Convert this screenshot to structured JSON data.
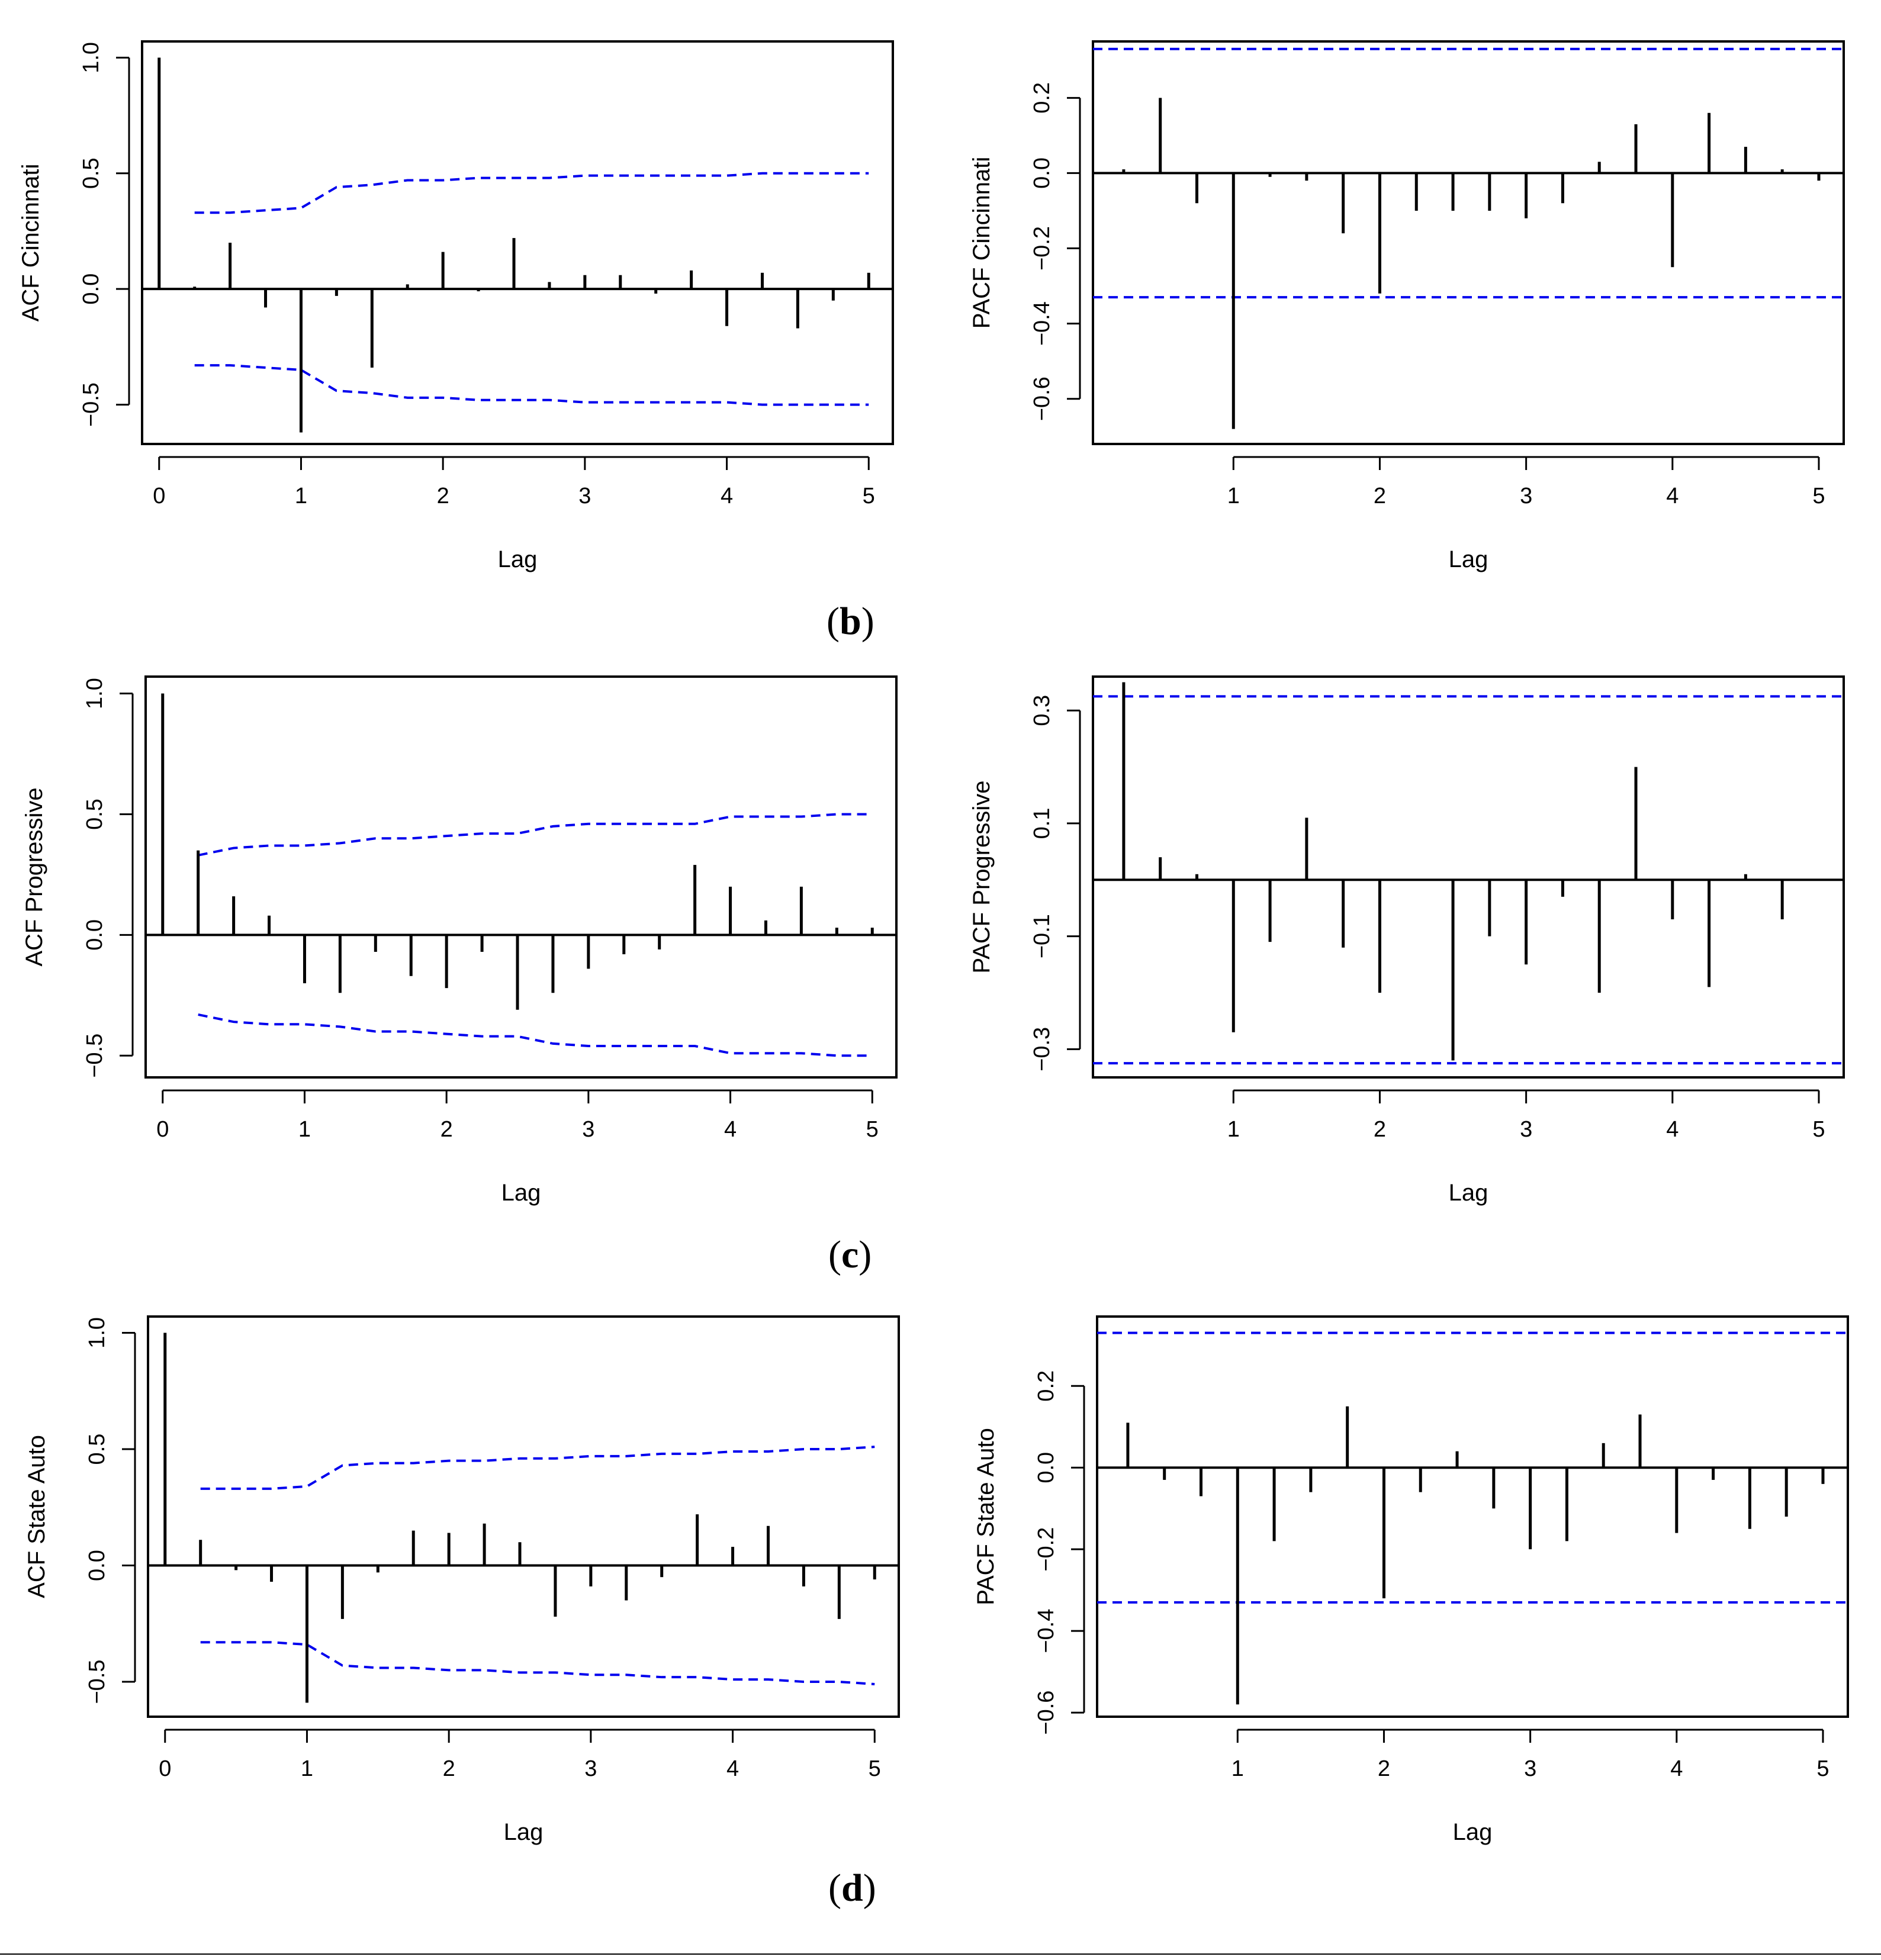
{
  "panel_labels": [
    "b",
    "c",
    "d"
  ],
  "chart_data": [
    {
      "type": "bar",
      "id": "acf_cincinnati",
      "kind": "acf",
      "title": "",
      "xlabel": "Lag",
      "ylabel": "ACF Cincinnati",
      "xlim": [
        -0.12,
        5.17
      ],
      "ylim": [
        -0.67,
        1.07
      ],
      "xticks": [
        0,
        1,
        2,
        3,
        4,
        5
      ],
      "yticks": [
        -0.5,
        0.0,
        0.5,
        1.0
      ],
      "ytick_labels": [
        "−0.5",
        "0.0",
        "0.5",
        "1.0"
      ],
      "lags": [
        0,
        0.25,
        0.5,
        0.75,
        1.0,
        1.25,
        1.5,
        1.75,
        2.0,
        2.25,
        2.5,
        2.75,
        3.0,
        3.25,
        3.5,
        3.75,
        4.0,
        4.25,
        4.5,
        4.75,
        5.0
      ],
      "values": [
        1.0,
        0.01,
        0.2,
        -0.08,
        -0.62,
        -0.03,
        -0.34,
        0.02,
        0.16,
        -0.01,
        0.22,
        0.03,
        0.06,
        0.06,
        -0.02,
        0.08,
        -0.16,
        0.07,
        -0.17,
        -0.05,
        0.07
      ],
      "bound_lags": [
        0.25,
        0.5,
        0.75,
        1.0,
        1.25,
        1.5,
        1.75,
        2.0,
        2.25,
        2.5,
        2.75,
        3.0,
        3.25,
        3.5,
        3.75,
        4.0,
        4.25,
        4.5,
        4.75,
        5.0
      ],
      "bound_values": [
        0.33,
        0.33,
        0.34,
        0.35,
        0.44,
        0.45,
        0.47,
        0.47,
        0.48,
        0.48,
        0.48,
        0.49,
        0.49,
        0.49,
        0.49,
        0.49,
        0.5,
        0.5,
        0.5,
        0.5
      ]
    },
    {
      "type": "bar",
      "id": "pacf_cincinnati",
      "kind": "pacf",
      "title": "",
      "xlabel": "Lag",
      "ylabel": "PACF Cincinnati",
      "xlim": [
        0.04,
        5.17
      ],
      "ylim": [
        -0.72,
        0.35
      ],
      "xticks": [
        1,
        2,
        3,
        4,
        5
      ],
      "yticks": [
        -0.6,
        -0.4,
        -0.2,
        0.0,
        0.2
      ],
      "ytick_labels": [
        "−0.6",
        "−0.4",
        "−0.2",
        "0.0",
        "0.2"
      ],
      "lags": [
        0.25,
        0.5,
        0.75,
        1.0,
        1.25,
        1.5,
        1.75,
        2.0,
        2.25,
        2.5,
        2.75,
        3.0,
        3.25,
        3.5,
        3.75,
        4.0,
        4.25,
        4.5,
        4.75,
        5.0
      ],
      "values": [
        0.01,
        0.2,
        -0.08,
        -0.68,
        -0.01,
        -0.02,
        -0.16,
        -0.32,
        -0.1,
        -0.1,
        -0.1,
        -0.12,
        -0.08,
        0.03,
        0.13,
        -0.25,
        0.16,
        0.07,
        0.01,
        -0.02
      ],
      "bound": 0.33
    },
    {
      "type": "bar",
      "id": "acf_progressive",
      "kind": "acf",
      "title": "",
      "xlabel": "Lag",
      "ylabel": "ACF Progressive",
      "xlim": [
        -0.12,
        5.17
      ],
      "ylim": [
        -0.59,
        1.07
      ],
      "xticks": [
        0,
        1,
        2,
        3,
        4,
        5
      ],
      "yticks": [
        -0.5,
        0.0,
        0.5,
        1.0
      ],
      "ytick_labels": [
        "−0.5",
        "0.0",
        "0.5",
        "1.0"
      ],
      "lags": [
        0,
        0.25,
        0.5,
        0.75,
        1.0,
        1.25,
        1.5,
        1.75,
        2.0,
        2.25,
        2.5,
        2.75,
        3.0,
        3.25,
        3.5,
        3.75,
        4.0,
        4.25,
        4.5,
        4.75,
        5.0
      ],
      "values": [
        1.0,
        0.35,
        0.16,
        0.08,
        -0.2,
        -0.24,
        -0.07,
        -0.17,
        -0.22,
        -0.07,
        -0.31,
        -0.24,
        -0.14,
        -0.08,
        -0.06,
        0.29,
        0.2,
        0.06,
        0.2,
        0.03,
        0.03
      ],
      "bound_lags": [
        0.25,
        0.5,
        0.75,
        1.0,
        1.25,
        1.5,
        1.75,
        2.0,
        2.25,
        2.5,
        2.75,
        3.0,
        3.25,
        3.5,
        3.75,
        4.0,
        4.25,
        4.5,
        4.75,
        5.0
      ],
      "bound_values": [
        0.33,
        0.36,
        0.37,
        0.37,
        0.38,
        0.4,
        0.4,
        0.41,
        0.42,
        0.42,
        0.45,
        0.46,
        0.46,
        0.46,
        0.46,
        0.49,
        0.49,
        0.49,
        0.5,
        0.5
      ]
    },
    {
      "type": "bar",
      "id": "pacf_progressive",
      "kind": "pacf",
      "title": "",
      "xlabel": "Lag",
      "ylabel": "PACF Progressive",
      "xlim": [
        0.04,
        5.17
      ],
      "ylim": [
        -0.35,
        0.36
      ],
      "xticks": [
        1,
        2,
        3,
        4,
        5
      ],
      "yticks": [
        -0.3,
        -0.1,
        0.1,
        0.3
      ],
      "ytick_labels": [
        "−0.3",
        "−0.1",
        "0.1",
        "0.3"
      ],
      "lags": [
        0.25,
        0.5,
        0.75,
        1.0,
        1.25,
        1.5,
        1.75,
        2.0,
        2.25,
        2.5,
        2.75,
        3.0,
        3.25,
        3.5,
        3.75,
        4.0,
        4.25,
        4.5,
        4.75,
        5.0
      ],
      "values": [
        0.35,
        0.04,
        0.01,
        -0.27,
        -0.11,
        0.11,
        -0.12,
        -0.2,
        0.0,
        -0.32,
        -0.1,
        -0.15,
        -0.03,
        -0.2,
        0.2,
        -0.07,
        -0.19,
        0.01,
        -0.07,
        0.0
      ],
      "bound": 0.325
    },
    {
      "type": "bar",
      "id": "acf_state_auto",
      "kind": "acf",
      "title": "",
      "xlabel": "Lag",
      "ylabel": "ACF State Auto",
      "xlim": [
        -0.12,
        5.17
      ],
      "ylim": [
        -0.65,
        1.07
      ],
      "xticks": [
        0,
        1,
        2,
        3,
        4,
        5
      ],
      "yticks": [
        -0.5,
        0.0,
        0.5,
        1.0
      ],
      "ytick_labels": [
        "−0.5",
        "0.0",
        "0.5",
        "1.0"
      ],
      "lags": [
        0,
        0.25,
        0.5,
        0.75,
        1.0,
        1.25,
        1.5,
        1.75,
        2.0,
        2.25,
        2.5,
        2.75,
        3.0,
        3.25,
        3.5,
        3.75,
        4.0,
        4.25,
        4.5,
        4.75,
        5.0
      ],
      "values": [
        1.0,
        0.11,
        -0.02,
        -0.07,
        -0.59,
        -0.23,
        -0.03,
        0.15,
        0.14,
        0.18,
        0.1,
        -0.22,
        -0.09,
        -0.15,
        -0.05,
        0.22,
        0.08,
        0.17,
        -0.09,
        -0.23,
        -0.06
      ],
      "bound_lags": [
        0.25,
        0.5,
        0.75,
        1.0,
        1.25,
        1.5,
        1.75,
        2.0,
        2.25,
        2.5,
        2.75,
        3.0,
        3.25,
        3.5,
        3.75,
        4.0,
        4.25,
        4.5,
        4.75,
        5.0
      ],
      "bound_values": [
        0.33,
        0.33,
        0.33,
        0.34,
        0.43,
        0.44,
        0.44,
        0.45,
        0.45,
        0.46,
        0.46,
        0.47,
        0.47,
        0.48,
        0.48,
        0.49,
        0.49,
        0.5,
        0.5,
        0.51
      ]
    },
    {
      "type": "bar",
      "id": "pacf_state_auto",
      "kind": "pacf",
      "title": "",
      "xlabel": "Lag",
      "ylabel": "PACF State Auto",
      "xlim": [
        0.04,
        5.17
      ],
      "ylim": [
        -0.61,
        0.37
      ],
      "xticks": [
        1,
        2,
        3,
        4,
        5
      ],
      "yticks": [
        -0.6,
        -0.4,
        -0.2,
        0.0,
        0.2
      ],
      "ytick_labels": [
        "−0.6",
        "−0.4",
        "−0.2",
        "0.0",
        "0.2"
      ],
      "lags": [
        0.25,
        0.5,
        0.75,
        1.0,
        1.25,
        1.5,
        1.75,
        2.0,
        2.25,
        2.5,
        2.75,
        3.0,
        3.25,
        3.5,
        3.75,
        4.0,
        4.25,
        4.5,
        4.75,
        5.0
      ],
      "values": [
        0.11,
        -0.03,
        -0.07,
        -0.58,
        -0.18,
        -0.06,
        0.15,
        -0.32,
        -0.06,
        0.04,
        -0.1,
        -0.2,
        -0.18,
        0.06,
        0.13,
        -0.16,
        -0.03,
        -0.15,
        -0.12,
        -0.04
      ],
      "bound": 0.33
    }
  ]
}
